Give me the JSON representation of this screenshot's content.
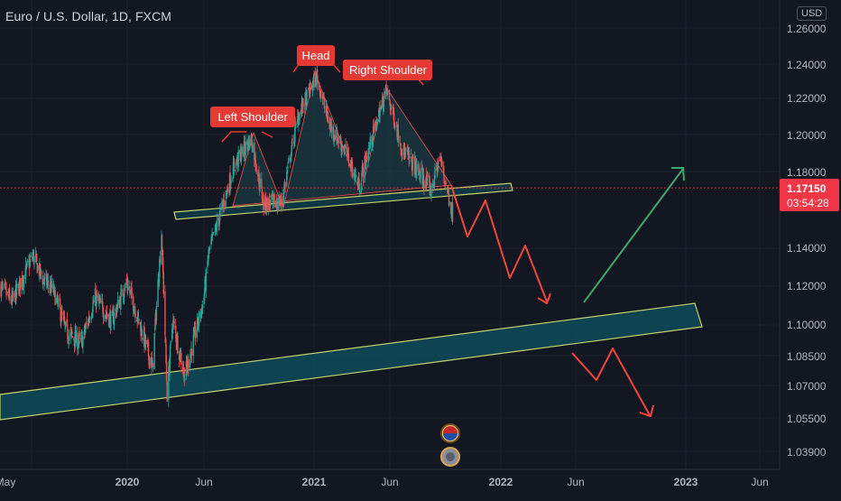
{
  "chart_title": "Euro / U.S. Dollar, 1D, FXCM",
  "currency": "USD",
  "price_scale": {
    "ticks": [
      "1.26000",
      "1.24000",
      "1.22000",
      "1.20000",
      "1.18000",
      "1.14000",
      "1.12000",
      "1.10000",
      "1.08500",
      "1.07000",
      "1.05500",
      "1.03900"
    ]
  },
  "last_price": {
    "price": "1.17150",
    "countdown": "03:54:28",
    "value": 1.1715
  },
  "time_axis": {
    "labels": [
      "May",
      "2020",
      "Jun",
      "2021",
      "Jun",
      "2022",
      "Jun",
      "2023",
      "Jun"
    ]
  },
  "colors": {
    "background": "#131722",
    "up": "#26a69a",
    "down": "#ef5350",
    "channel_fill": "#0e4b5a",
    "channel_border": "#c8d26a",
    "annotation_red": "#e53935",
    "projection_red": "#f0463c",
    "projection_green": "#3ea86a",
    "price_tag": "#f23645"
  },
  "chart_data": {
    "type": "candlestick",
    "symbol": "Euro / U.S. Dollar",
    "timeframe": "1D",
    "source": "FXCM",
    "y_range": [
      1.035,
      1.265
    ],
    "close_path": [
      [
        "2019-04-20",
        1.12
      ],
      [
        "2019-05-15",
        1.112
      ],
      [
        "2019-06-25",
        1.136
      ],
      [
        "2019-07-15",
        1.124
      ],
      [
        "2019-08-05",
        1.118
      ],
      [
        "2019-09-01",
        1.096
      ],
      [
        "2019-10-01",
        1.091
      ],
      [
        "2019-10-28",
        1.114
      ],
      [
        "2019-12-01",
        1.102
      ],
      [
        "2019-12-31",
        1.122
      ],
      [
        "2020-02-20",
        1.079
      ],
      [
        "2020-03-09",
        1.148
      ],
      [
        "2020-03-20",
        1.066
      ],
      [
        "2020-03-31",
        1.102
      ],
      [
        "2020-04-24",
        1.075
      ],
      [
        "2020-05-31",
        1.112
      ],
      [
        "2020-06-10",
        1.137
      ],
      [
        "2020-07-31",
        1.184
      ],
      [
        "2020-09-01",
        1.198
      ],
      [
        "2020-09-25",
        1.163
      ],
      [
        "2020-10-30",
        1.164
      ],
      [
        "2020-12-01",
        1.21
      ],
      [
        "2021-01-06",
        1.233
      ],
      [
        "2021-02-01",
        1.205
      ],
      [
        "2021-03-05",
        1.191
      ],
      [
        "2021-03-31",
        1.173
      ],
      [
        "2021-05-25",
        1.225
      ],
      [
        "2021-06-25",
        1.192
      ],
      [
        "2021-08-20",
        1.17
      ],
      [
        "2021-09-05",
        1.188
      ],
      [
        "2021-09-30",
        1.158
      ]
    ],
    "annotations": [
      "Left Shoulder",
      "Head",
      "Right Shoulder"
    ]
  }
}
